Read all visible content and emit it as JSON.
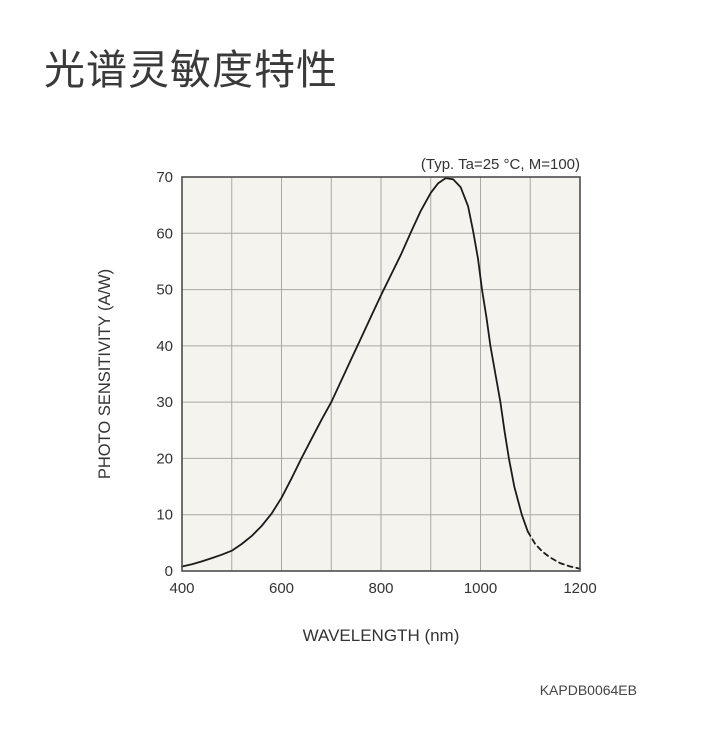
{
  "page": {
    "title": "光谱灵敏度特性",
    "figure_code": "KAPDB0064EB"
  },
  "chart_data": {
    "type": "line",
    "annotation": "(Typ. Ta=25 °C, M=100)",
    "xlabel": "WAVELENGTH (nm)",
    "ylabel": "PHOTO SENSITIVITY (A/W)",
    "xlim": [
      400,
      1200
    ],
    "ylim": [
      0,
      70
    ],
    "x_tick_labels": [
      400,
      600,
      800,
      1000,
      1200
    ],
    "x_grid_step": 100,
    "y_tick_labels": [
      0,
      10,
      20,
      30,
      40,
      50,
      60,
      70
    ],
    "y_grid_step": 10,
    "grid": true,
    "legend": "none",
    "colors": {
      "plot_background": "#f4f3ed",
      "grid": "#a9a9a2",
      "axis_frame": "#4d4d4d",
      "curve": "#1b1b1b",
      "text": "#333333"
    },
    "series": [
      {
        "name": "photo-sensitivity-typical",
        "style": "solid",
        "points": [
          [
            400,
            0.8
          ],
          [
            420,
            1.2
          ],
          [
            440,
            1.7
          ],
          [
            460,
            2.3
          ],
          [
            480,
            2.9
          ],
          [
            500,
            3.6
          ],
          [
            520,
            4.8
          ],
          [
            540,
            6.2
          ],
          [
            560,
            8.0
          ],
          [
            580,
            10.2
          ],
          [
            600,
            13.0
          ],
          [
            620,
            16.4
          ],
          [
            640,
            20.0
          ],
          [
            660,
            23.4
          ],
          [
            680,
            26.8
          ],
          [
            700,
            30.0
          ],
          [
            720,
            33.8
          ],
          [
            740,
            37.6
          ],
          [
            760,
            41.4
          ],
          [
            780,
            45.2
          ],
          [
            800,
            49.0
          ],
          [
            820,
            52.6
          ],
          [
            840,
            56.2
          ],
          [
            860,
            60.2
          ],
          [
            880,
            64.0
          ],
          [
            900,
            67.2
          ],
          [
            915,
            68.9
          ],
          [
            930,
            69.8
          ],
          [
            945,
            69.6
          ],
          [
            960,
            68.2
          ],
          [
            975,
            64.8
          ],
          [
            985,
            60.5
          ],
          [
            995,
            55.5
          ],
          [
            1003,
            50.0
          ],
          [
            1012,
            45.0
          ],
          [
            1020,
            40.0
          ],
          [
            1030,
            35.0
          ],
          [
            1040,
            30.0
          ],
          [
            1048,
            25.0
          ],
          [
            1057,
            20.0
          ],
          [
            1068,
            15.0
          ],
          [
            1083,
            10.0
          ],
          [
            1095,
            7.0
          ]
        ]
      },
      {
        "name": "photo-sensitivity-extrapolated",
        "style": "dashed",
        "points": [
          [
            1095,
            7.0
          ],
          [
            1110,
            4.8
          ],
          [
            1125,
            3.4
          ],
          [
            1140,
            2.4
          ],
          [
            1160,
            1.4
          ],
          [
            1180,
            0.8
          ],
          [
            1200,
            0.4
          ]
        ]
      }
    ]
  }
}
